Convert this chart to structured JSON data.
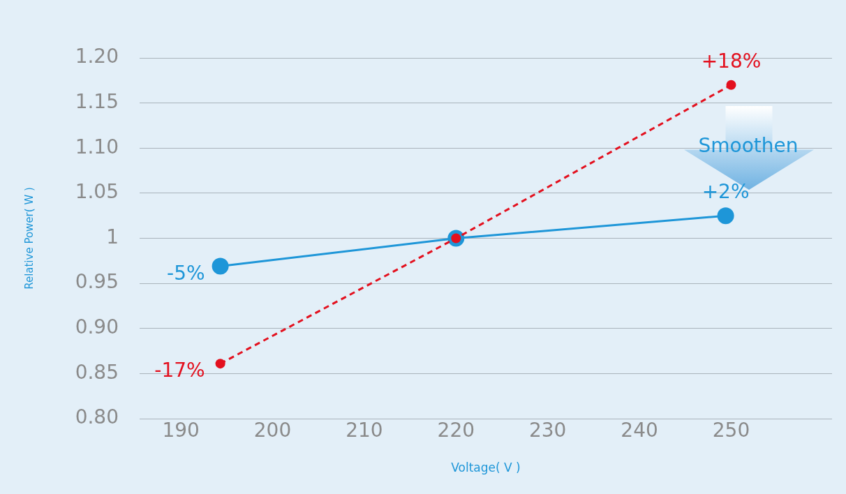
{
  "chart_data": {
    "type": "line",
    "xlabel": "Voltage( V )",
    "ylabel": "Relative Power( W )",
    "xlim": [
      185.5,
      261
    ],
    "xticks": [
      190,
      200,
      210,
      220,
      230,
      240,
      250
    ],
    "ylim": [
      0.8,
      1.2
    ],
    "yticks": [
      {
        "value": 0.8,
        "label": "0.80"
      },
      {
        "value": 0.85,
        "label": "0.85"
      },
      {
        "value": 0.9,
        "label": "0.90"
      },
      {
        "value": 0.95,
        "label": "0.95"
      },
      1,
      {
        "value": 1.05,
        "label": "1.05"
      },
      {
        "value": 1.1,
        "label": "1.10"
      },
      {
        "value": 1.15,
        "label": "1.15"
      },
      {
        "value": 1.2,
        "label": "1.20"
      }
    ],
    "grid": "y",
    "legend": false,
    "series": [
      {
        "color": "#1e96d8",
        "x": [
          194.3,
          220,
          249.4
        ],
        "values": [
          0.969,
          1.0,
          1.025
        ],
        "marker": "circle",
        "line_style": "solid"
      },
      {
        "color": "#e3101e",
        "x": [
          194.3,
          220,
          250
        ],
        "values": [
          0.861,
          1.0,
          1.17
        ],
        "marker": "circle",
        "line_style": "dashed"
      }
    ],
    "annotations": [
      {
        "text": "-5%",
        "x": 194.3,
        "y": 0.969
      },
      {
        "text": "+2%",
        "x": 249.4,
        "y": 1.025
      },
      {
        "text": "-17%",
        "x": 194.3,
        "y": 0.861
      },
      {
        "text": "+18%",
        "x": 250,
        "y": 1.17
      },
      "Smoothen"
    ]
  }
}
